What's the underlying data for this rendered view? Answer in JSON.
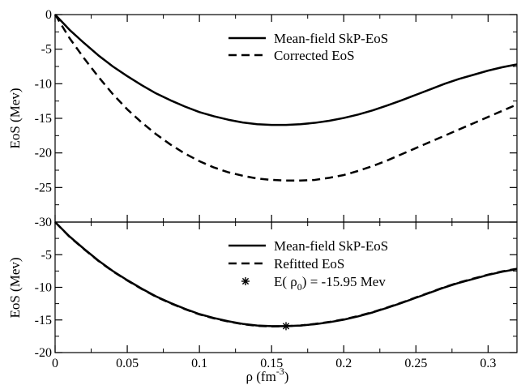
{
  "chart_data": [
    {
      "type": "line",
      "ylabel": "EoS (Mev)",
      "xlim": [
        0,
        0.32
      ],
      "ylim": [
        -30,
        0
      ],
      "y_ticks": [
        0,
        -5,
        -10,
        -15,
        -20,
        -25,
        -30
      ],
      "y_tick_labels": [
        "0",
        "-5",
        "-10",
        "-15",
        "-20",
        "-25",
        "-30"
      ],
      "legend_position": "top-right",
      "grid": false,
      "series": [
        {
          "name": "Mean-field SkP-EoS",
          "style": "solid",
          "color": "#000000",
          "x": [
            0,
            0.01,
            0.02,
            0.03,
            0.04,
            0.05,
            0.06,
            0.07,
            0.08,
            0.09,
            0.1,
            0.11,
            0.12,
            0.13,
            0.14,
            0.15,
            0.16,
            0.17,
            0.18,
            0.19,
            0.2,
            0.21,
            0.22,
            0.23,
            0.24,
            0.25,
            0.26,
            0.27,
            0.28,
            0.29,
            0.3,
            0.31,
            0.32
          ],
          "y": [
            0,
            -2.2,
            -4.1,
            -5.9,
            -7.5,
            -8.9,
            -10.2,
            -11.4,
            -12.4,
            -13.3,
            -14.1,
            -14.7,
            -15.2,
            -15.6,
            -15.85,
            -15.95,
            -15.95,
            -15.85,
            -15.65,
            -15.35,
            -14.95,
            -14.45,
            -13.85,
            -13.15,
            -12.4,
            -11.6,
            -10.8,
            -10.0,
            -9.3,
            -8.7,
            -8.1,
            -7.6,
            -7.2
          ]
        },
        {
          "name": "Corrected EoS",
          "style": "dashed",
          "color": "#000000",
          "x": [
            0,
            0.01,
            0.02,
            0.03,
            0.04,
            0.05,
            0.06,
            0.07,
            0.08,
            0.09,
            0.1,
            0.11,
            0.12,
            0.13,
            0.14,
            0.15,
            0.16,
            0.17,
            0.18,
            0.19,
            0.2,
            0.21,
            0.22,
            0.23,
            0.24,
            0.25,
            0.26,
            0.27,
            0.28,
            0.29,
            0.3,
            0.31,
            0.32
          ],
          "y": [
            0,
            -3.4,
            -6.3,
            -9.0,
            -11.5,
            -13.7,
            -15.6,
            -17.3,
            -18.8,
            -20.1,
            -21.2,
            -22.1,
            -22.8,
            -23.3,
            -23.7,
            -23.9,
            -24.0,
            -24.0,
            -23.9,
            -23.6,
            -23.2,
            -22.6,
            -21.9,
            -21.1,
            -20.2,
            -19.3,
            -18.4,
            -17.5,
            -16.6,
            -15.7,
            -14.8,
            -13.9,
            -13.0
          ]
        }
      ]
    },
    {
      "type": "line",
      "xlabel": "ρ (fm",
      "xlabel_sup": "-3",
      "xlabel_close": ")",
      "ylabel": "EoS (Mev)",
      "xlim": [
        0,
        0.32
      ],
      "ylim": [
        -20,
        0
      ],
      "x_ticks": [
        0,
        0.05,
        0.1,
        0.15,
        0.2,
        0.25,
        0.3
      ],
      "x_tick_labels": [
        "0",
        "0.05",
        "0.1",
        "0.15",
        "0.2",
        "0.25",
        "0.3"
      ],
      "y_ticks": [
        -5,
        -10,
        -15,
        -20
      ],
      "y_tick_labels": [
        "-5",
        "-10",
        "-15",
        "-20"
      ],
      "legend_position": "top-right",
      "grid": false,
      "series": [
        {
          "name": "Mean-field SkP-EoS",
          "style": "solid",
          "color": "#000000",
          "x": [
            0,
            0.01,
            0.02,
            0.03,
            0.04,
            0.05,
            0.06,
            0.07,
            0.08,
            0.09,
            0.1,
            0.11,
            0.12,
            0.13,
            0.14,
            0.15,
            0.16,
            0.17,
            0.18,
            0.19,
            0.2,
            0.21,
            0.22,
            0.23,
            0.24,
            0.25,
            0.26,
            0.27,
            0.28,
            0.29,
            0.3,
            0.31,
            0.32
          ],
          "y": [
            0,
            -2.2,
            -4.1,
            -5.9,
            -7.5,
            -8.9,
            -10.2,
            -11.4,
            -12.4,
            -13.3,
            -14.1,
            -14.7,
            -15.2,
            -15.6,
            -15.85,
            -15.95,
            -15.95,
            -15.85,
            -15.65,
            -15.35,
            -14.95,
            -14.45,
            -13.85,
            -13.15,
            -12.4,
            -11.6,
            -10.8,
            -10.0,
            -9.3,
            -8.7,
            -8.1,
            -7.6,
            -7.2
          ]
        },
        {
          "name": "Refitted EoS",
          "style": "dashed",
          "color": "#000000",
          "x": [
            0,
            0.01,
            0.02,
            0.03,
            0.04,
            0.05,
            0.06,
            0.07,
            0.08,
            0.09,
            0.1,
            0.11,
            0.12,
            0.13,
            0.14,
            0.15,
            0.16,
            0.17,
            0.18,
            0.19,
            0.2,
            0.21,
            0.22,
            0.23,
            0.24,
            0.25,
            0.26,
            0.27,
            0.28,
            0.29,
            0.3,
            0.31,
            0.32
          ],
          "y": [
            0,
            -2.25,
            -4.15,
            -5.95,
            -7.55,
            -8.95,
            -10.25,
            -11.45,
            -12.45,
            -13.35,
            -14.15,
            -14.75,
            -15.25,
            -15.65,
            -15.9,
            -16.0,
            -15.95,
            -15.85,
            -15.6,
            -15.3,
            -14.9,
            -14.4,
            -13.8,
            -13.1,
            -12.35,
            -11.55,
            -10.75,
            -9.95,
            -9.25,
            -8.65,
            -8.05,
            -7.55,
            -7.15
          ]
        }
      ],
      "markers": [
        {
          "name": "E( ρ₀) = -15.95 Mev",
          "x": 0.16,
          "y": -15.95,
          "symbol": "*"
        }
      ]
    }
  ],
  "legend_top": {
    "line1": "Mean-field SkP-EoS",
    "line2": "Corrected EoS"
  },
  "legend_bottom": {
    "line1": "Mean-field SkP-EoS",
    "line2": "Refitted EoS",
    "marker_prefix": "E( ρ",
    "marker_sub": "0",
    "marker_suffix": ") = -15.95 Mev"
  }
}
